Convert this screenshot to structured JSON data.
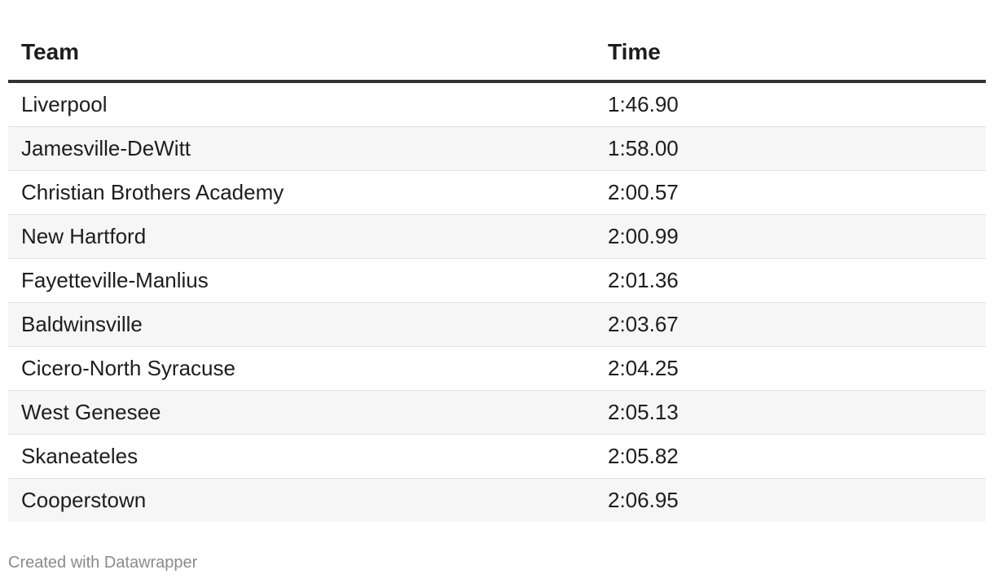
{
  "table": {
    "header": [
      "Team",
      "Time"
    ],
    "rows": [
      [
        "Liverpool",
        "1:46.90"
      ],
      [
        "Jamesville-DeWitt",
        "1:58.00"
      ],
      [
        "Christian Brothers Academy",
        "2:00.57"
      ],
      [
        "New Hartford",
        "2:00.99"
      ],
      [
        "Fayetteville-Manlius",
        "2:01.36"
      ],
      [
        "Baldwinsville",
        "2:03.67"
      ],
      [
        "Cicero-North Syracuse",
        "2:04.25"
      ],
      [
        "West Genesee",
        "2:05.13"
      ],
      [
        "Skaneateles",
        "2:05.82"
      ],
      [
        "Cooperstown",
        "2:06.95"
      ]
    ]
  },
  "footer": "Created with Datawrapper"
}
